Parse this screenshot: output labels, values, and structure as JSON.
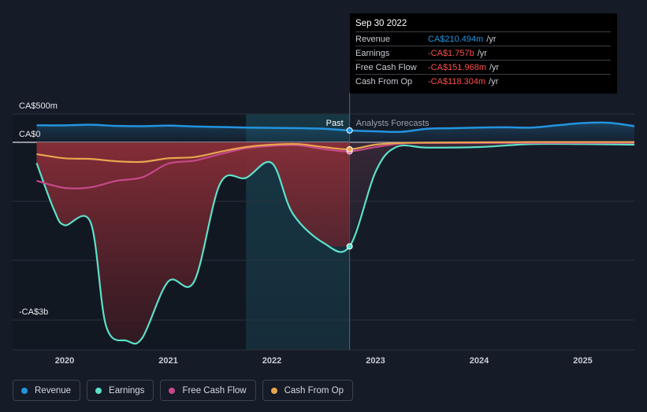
{
  "chart_data": {
    "type": "area",
    "y_ticks": [
      {
        "value": 500,
        "label": "CA$500m"
      },
      {
        "value": 0,
        "label": "CA$0"
      },
      {
        "value": -3000,
        "label": "-CA$3b"
      }
    ],
    "ylim": [
      -3500,
      500
    ],
    "xlim": [
      2019.6,
      2025.5
    ],
    "x_ticks": [
      {
        "value": 2020,
        "label": "2020"
      },
      {
        "value": 2021,
        "label": "2021"
      },
      {
        "value": 2022,
        "label": "2022"
      },
      {
        "value": 2023,
        "label": "2023"
      },
      {
        "value": 2024,
        "label": "2024"
      },
      {
        "value": 2025,
        "label": "2025"
      }
    ],
    "past_label": "Past",
    "forecast_label": "Analysts Forecasts",
    "divider_x": 2022.75,
    "shade_start_x": 2021.75,
    "series": [
      {
        "name": "Revenue",
        "color": "#2394df",
        "points": [
          [
            2019.73,
            300
          ],
          [
            2020.0,
            300
          ],
          [
            2020.25,
            310
          ],
          [
            2020.5,
            290
          ],
          [
            2020.75,
            285
          ],
          [
            2021.0,
            295
          ],
          [
            2021.25,
            280
          ],
          [
            2021.5,
            270
          ],
          [
            2021.75,
            260
          ],
          [
            2022.0,
            255
          ],
          [
            2022.25,
            250
          ],
          [
            2022.5,
            240
          ],
          [
            2022.75,
            210
          ],
          [
            2023.0,
            195
          ],
          [
            2023.25,
            185
          ],
          [
            2023.5,
            240
          ],
          [
            2023.75,
            250
          ],
          [
            2024.0,
            260
          ],
          [
            2024.25,
            265
          ],
          [
            2024.5,
            260
          ],
          [
            2024.75,
            300
          ],
          [
            2025.0,
            340
          ],
          [
            2025.25,
            345
          ],
          [
            2025.5,
            285
          ]
        ]
      },
      {
        "name": "Earnings",
        "color": "#5ce0c8",
        "points": [
          [
            2019.73,
            -350
          ],
          [
            2019.9,
            -1150
          ],
          [
            2020.0,
            -1400
          ],
          [
            2020.25,
            -1350
          ],
          [
            2020.4,
            -3100
          ],
          [
            2020.6,
            -3350
          ],
          [
            2020.75,
            -3300
          ],
          [
            2021.0,
            -2350
          ],
          [
            2021.25,
            -2350
          ],
          [
            2021.5,
            -700
          ],
          [
            2021.75,
            -600
          ],
          [
            2022.0,
            -350
          ],
          [
            2022.2,
            -1200
          ],
          [
            2022.5,
            -1700
          ],
          [
            2022.75,
            -1757
          ],
          [
            2023.0,
            -500
          ],
          [
            2023.2,
            -80
          ],
          [
            2023.5,
            -90
          ],
          [
            2024.0,
            -80
          ],
          [
            2024.5,
            -30
          ],
          [
            2025.0,
            -30
          ],
          [
            2025.5,
            -40
          ]
        ]
      },
      {
        "name": "Free Cash Flow",
        "color": "#c8488a",
        "points": [
          [
            2019.73,
            -650
          ],
          [
            2020.0,
            -770
          ],
          [
            2020.25,
            -760
          ],
          [
            2020.5,
            -650
          ],
          [
            2020.75,
            -590
          ],
          [
            2021.0,
            -360
          ],
          [
            2021.25,
            -310
          ],
          [
            2021.5,
            -200
          ],
          [
            2021.75,
            -100
          ],
          [
            2022.0,
            -60
          ],
          [
            2022.25,
            -50
          ],
          [
            2022.5,
            -115
          ],
          [
            2022.75,
            -152
          ],
          [
            2023.0,
            -80
          ],
          [
            2023.25,
            -20
          ],
          [
            2023.5,
            -10
          ],
          [
            2024.0,
            -10
          ],
          [
            2024.5,
            -10
          ],
          [
            2025.0,
            -10
          ],
          [
            2025.5,
            -10
          ]
        ]
      },
      {
        "name": "Cash From Op",
        "color": "#e8a54f",
        "points": [
          [
            2019.73,
            -200
          ],
          [
            2020.0,
            -270
          ],
          [
            2020.25,
            -280
          ],
          [
            2020.5,
            -320
          ],
          [
            2020.75,
            -330
          ],
          [
            2021.0,
            -270
          ],
          [
            2021.25,
            -250
          ],
          [
            2021.5,
            -160
          ],
          [
            2021.75,
            -80
          ],
          [
            2022.0,
            -40
          ],
          [
            2022.25,
            -30
          ],
          [
            2022.5,
            -80
          ],
          [
            2022.75,
            -118
          ],
          [
            2023.0,
            -40
          ],
          [
            2023.25,
            -10
          ],
          [
            2023.5,
            -5
          ],
          [
            2024.0,
            0
          ],
          [
            2024.5,
            5
          ],
          [
            2025.0,
            5
          ],
          [
            2025.5,
            5
          ]
        ]
      }
    ]
  },
  "tooltip": {
    "date": "Sep 30 2022",
    "rows": [
      {
        "label": "Revenue",
        "value": "CA$210.494m",
        "unit": "/yr"
      },
      {
        "label": "Earnings",
        "value": "-CA$1.757b",
        "unit": "/yr"
      },
      {
        "label": "Free Cash Flow",
        "value": "-CA$151.968m",
        "unit": "/yr"
      },
      {
        "label": "Cash From Op",
        "value": "-CA$118.304m",
        "unit": "/yr"
      }
    ]
  },
  "legend": [
    {
      "label": "Revenue",
      "color": "#2394df"
    },
    {
      "label": "Earnings",
      "color": "#5ce0c8"
    },
    {
      "label": "Free Cash Flow",
      "color": "#c8488a"
    },
    {
      "label": "Cash From Op",
      "color": "#e8a54f"
    }
  ]
}
